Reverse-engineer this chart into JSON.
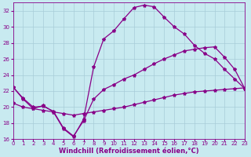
{
  "bg_color": "#c8eaf0",
  "grid_color": "#a8ccd8",
  "line_color": "#880088",
  "xlim": [
    0,
    23
  ],
  "ylim": [
    16,
    33
  ],
  "xticks": [
    0,
    1,
    2,
    3,
    4,
    5,
    6,
    7,
    8,
    9,
    10,
    11,
    12,
    13,
    14,
    15,
    16,
    17,
    18,
    19,
    20,
    21,
    22,
    23
  ],
  "yticks": [
    16,
    18,
    20,
    22,
    24,
    26,
    28,
    30,
    32
  ],
  "xlabel": "Windchill (Refroidissement éolien,°C)",
  "line1_x": [
    0,
    1,
    2,
    3,
    4,
    5,
    6,
    7,
    8,
    9,
    10,
    11,
    12,
    13,
    14,
    15,
    16,
    17,
    18,
    19,
    20,
    21,
    22,
    23
  ],
  "line1_y": [
    22.5,
    21.0,
    19.8,
    20.2,
    19.4,
    17.3,
    16.3,
    18.5,
    25.0,
    28.5,
    29.5,
    31.0,
    32.4,
    32.7,
    32.5,
    31.2,
    30.0,
    29.1,
    27.7,
    26.7,
    26.0,
    24.7,
    23.5,
    22.3
  ],
  "line2_x": [
    0,
    1,
    2,
    3,
    4,
    5,
    6,
    7,
    8,
    9,
    10,
    11,
    12,
    13,
    14,
    15,
    16,
    17,
    18,
    19,
    20,
    21,
    22,
    23
  ],
  "line2_y": [
    22.5,
    21.1,
    20.0,
    20.1,
    19.5,
    17.4,
    16.4,
    18.3,
    21.0,
    22.2,
    22.8,
    23.5,
    24.0,
    24.7,
    25.4,
    26.0,
    26.5,
    27.0,
    27.2,
    27.4,
    27.5,
    26.2,
    24.7,
    22.3
  ],
  "line3_x": [
    0,
    1,
    2,
    3,
    4,
    5,
    6,
    7,
    8,
    9,
    10,
    11,
    12,
    13,
    14,
    15,
    16,
    17,
    18,
    19,
    20,
    21,
    22,
    23
  ],
  "line3_y": [
    20.5,
    20.0,
    19.8,
    19.6,
    19.4,
    19.2,
    19.0,
    19.2,
    19.4,
    19.6,
    19.8,
    20.0,
    20.3,
    20.6,
    20.9,
    21.2,
    21.5,
    21.7,
    21.9,
    22.0,
    22.1,
    22.2,
    22.3,
    22.4
  ],
  "marker": "*",
  "markersize": 3,
  "linewidth": 0.9,
  "tick_fontsize": 5,
  "label_fontsize": 6
}
